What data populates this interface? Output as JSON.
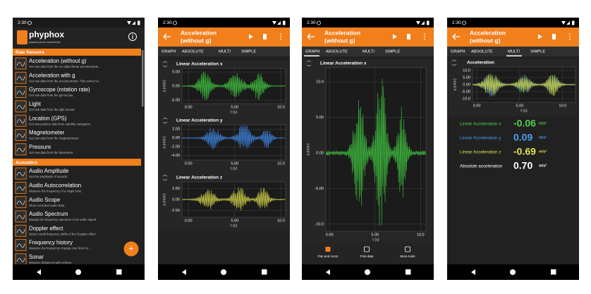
{
  "phones": [
    {
      "status": {
        "time": "2:30"
      },
      "app": {
        "name": "phyphox",
        "tagline": "physical phone experiments"
      },
      "sections": [
        {
          "title": "Raw Sensors",
          "items": [
            {
              "title": "Acceleration (without g)",
              "description": "Get raw data from the so called linear acceleromete..."
            },
            {
              "title": "Acceleration with g",
              "description": "Get raw data from the accelerometer. This sensor w..."
            },
            {
              "title": "Gyroscope (rotation rate)",
              "description": "Get raw data from the gyroscope."
            },
            {
              "title": "Light",
              "description": "Get raw data from the light sensor."
            },
            {
              "title": "Location (GPS)",
              "description": "Get raw position data from satellite navigation."
            },
            {
              "title": "Magnetometer",
              "description": "Get raw data from the magnetometer."
            },
            {
              "title": "Pressure",
              "description": "Get raw data from the barometer."
            }
          ]
        },
        {
          "title": "Acoustics",
          "items": [
            {
              "title": "Audio Amplitude",
              "description": "Get the amplitude of sounds."
            },
            {
              "title": "Audio Autocorrelation",
              "description": "Measure the frequency of a single tone."
            },
            {
              "title": "Audio Scope",
              "description": "Show recorded audio data."
            },
            {
              "title": "Audio Spectrum",
              "description": "Display the frequency spectrum of an audio signal."
            },
            {
              "title": "Doppler effect",
              "description": "Detect small frequency shifts of the Doppler effect."
            },
            {
              "title": "Frequency history",
              "description": "Measure the frequency change over time for ..."
            },
            {
              "title": "Sonar",
              "description": "Measure distances with echoes."
            }
          ]
        }
      ],
      "fab": "+"
    },
    {
      "status": {
        "time": "2:30"
      },
      "toolbar": {
        "title": "Acceleration",
        "subtitle": "(without g)"
      },
      "tabs": [
        "GRAPH",
        "ABSOLUTE",
        "MULTI",
        "SIMPLE"
      ],
      "graphs": [
        {
          "title": "Linear Acceleration x",
          "ylabel": "a (m/s²)",
          "xlabel": "t (s)",
          "color": "#3dbb3d",
          "ylim": [
            -6.25,
            6.25
          ],
          "yticks": [
            {
              "value": 5,
              "label": "5.00"
            },
            {
              "value": 0,
              "label": "0.00"
            },
            {
              "value": -5,
              "label": "-5.00"
            }
          ],
          "xlim": [
            -0.7,
            10.5
          ],
          "xticks": [
            {
              "value": 0,
              "label": "0.00"
            },
            {
              "value": 5,
              "label": "5.00"
            },
            {
              "value": 10,
              "label": "10.0"
            }
          ]
        },
        {
          "title": "Linear Acceleration y",
          "ylabel": "a (m/s²)",
          "xlabel": "t (s)",
          "color": "#3d7fd8",
          "ylim": [
            -5,
            3
          ],
          "yticks": [
            {
              "value": 2,
              "label": "2.00"
            },
            {
              "value": 0,
              "label": "0.00"
            },
            {
              "value": -2,
              "label": "-2.00"
            },
            {
              "value": -4,
              "label": "-4.00"
            }
          ],
          "xlim": [
            -0.7,
            10.5
          ],
          "xticks": [
            {
              "value": 0,
              "label": "0.00"
            },
            {
              "value": 5,
              "label": "5.00"
            },
            {
              "value": 10,
              "label": "10.0"
            }
          ]
        },
        {
          "title": "Linear Acceleration z",
          "ylabel": "a (m/s²)",
          "xlabel": "t (s)",
          "color": "#c9c947",
          "ylim": [
            -4,
            4
          ],
          "yticks": [
            {
              "value": 2.5,
              "label": "2.50"
            },
            {
              "value": 0,
              "label": "0.00"
            },
            {
              "value": -2.5,
              "label": "-2.50"
            }
          ],
          "xlim": [
            -0.7,
            10.5
          ],
          "xticks": [
            {
              "value": 0,
              "label": "0.00"
            },
            {
              "value": 5,
              "label": "5.00"
            },
            {
              "value": 10,
              "label": "10.0"
            }
          ]
        }
      ]
    },
    {
      "status": {
        "time": "2:30"
      },
      "toolbar": {
        "title": "Acceleration",
        "subtitle": "(without g)"
      },
      "tabs": [
        "GRAPH",
        "ABSOLUTE",
        "MULTI",
        "SIMPLE"
      ],
      "selected_tab": 0,
      "graphs": [
        {
          "title": "Linear Acceleration x",
          "ylabel": "a (m/s²)",
          "xlabel": "t (s)",
          "color": "#3dbb3d",
          "ylim": [
            -11,
            12
          ],
          "yticks": [
            {
              "value": 10,
              "label": "10.0"
            },
            {
              "value": 5,
              "label": "5.00"
            },
            {
              "value": 0,
              "label": "0.00"
            },
            {
              "value": -5,
              "label": "-5.00"
            },
            {
              "value": -10,
              "label": "-10.0"
            }
          ],
          "xlim": [
            -0.4,
            10.6
          ],
          "xticks": [
            {
              "value": 0,
              "label": "0.00"
            },
            {
              "value": 5,
              "label": "5.00"
            },
            {
              "value": 10,
              "label": "10.0"
            }
          ]
        }
      ],
      "tools": [
        "Pan and zoom",
        "Pick data",
        "More tools"
      ]
    },
    {
      "status": {
        "time": "2:30"
      },
      "toolbar": {
        "title": "Acceleration",
        "subtitle": "(without g)"
      },
      "tabs": [
        "GRAPH",
        "ABSOLUTE",
        "MULTI",
        "SIMPLE"
      ],
      "selected_tab": 2,
      "graphs": [
        {
          "title": "Acceleration",
          "ylabel": "a (m/s²)",
          "xlabel": "t (s)",
          "colors": [
            "#3dbb3d",
            "#3d7fd8",
            "#c9c947"
          ],
          "ylim": [
            -12.5,
            12.5
          ],
          "yticks": [
            {
              "value": 10,
              "label": "10.0"
            },
            {
              "value": 5,
              "label": "5.00"
            },
            {
              "value": 0,
              "label": "0.00"
            },
            {
              "value": -5,
              "label": "-5.00"
            },
            {
              "value": -10,
              "label": "-10.0"
            }
          ],
          "xlim": [
            -0.5,
            11.5
          ],
          "xticks": [
            {
              "value": 0,
              "label": "0.00"
            },
            {
              "value": 5,
              "label": "5.00"
            },
            {
              "value": 10,
              "label": "10.0"
            }
          ]
        }
      ],
      "readouts": [
        {
          "label": "Linear Acceleration x",
          "value": -0.06,
          "unit": "m/s²",
          "color": "#4ed04e"
        },
        {
          "label": "Linear Acceleration y",
          "value": 0.09,
          "unit": "m/s²",
          "color": "#4a9cf0"
        },
        {
          "label": "Linear Acceleration z",
          "value": -0.69,
          "unit": "m/s²",
          "color": "#e0e050"
        },
        {
          "label": "Absolute acceleration",
          "value": 0.7,
          "value_label": "0.70",
          "unit": "m/s²",
          "color": "#ffffff"
        }
      ]
    }
  ]
}
